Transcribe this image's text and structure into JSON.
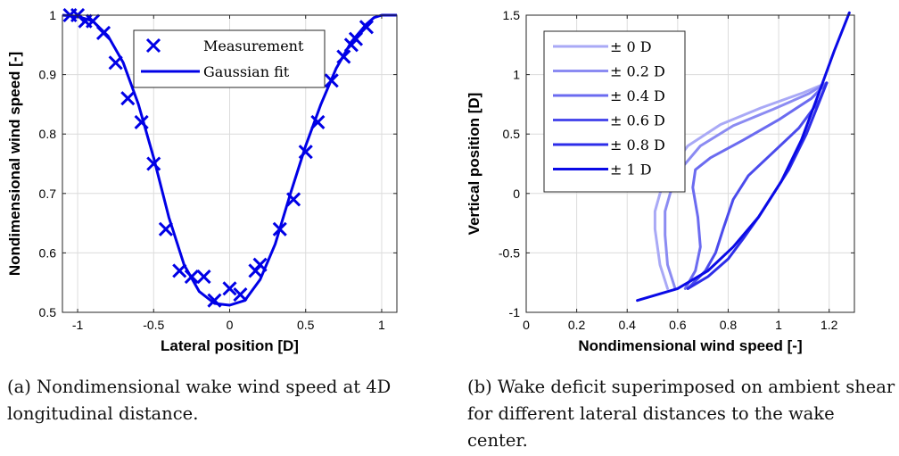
{
  "chart_data": [
    {
      "type": "scatter",
      "xlabel": "Lateral position [D]",
      "ylabel": "Nondimensional wind speed [-]",
      "xlim": [
        -1.1,
        1.1
      ],
      "ylim": [
        0.5,
        1.0
      ],
      "xticks": [
        "-1",
        "-0.5",
        "0",
        "0.5",
        "1"
      ],
      "yticks": [
        "0.5",
        "0.6",
        "0.7",
        "0.8",
        "0.9",
        "1"
      ],
      "grid": true,
      "legend_position": "top-right",
      "color": "#0000e6",
      "series": [
        {
          "name": "Measurement",
          "style": "markers",
          "x": [
            -1.05,
            -1.0,
            -0.95,
            -0.9,
            -0.83,
            -0.75,
            -0.67,
            -0.58,
            -0.5,
            -0.42,
            -0.33,
            -0.25,
            -0.17,
            -0.1,
            0.0,
            0.07,
            0.17,
            0.2,
            0.33,
            0.42,
            0.5,
            0.58,
            0.67,
            0.75,
            0.8,
            0.83,
            0.9
          ],
          "y": [
            1.0,
            1.0,
            0.99,
            0.99,
            0.97,
            0.92,
            0.86,
            0.82,
            0.75,
            0.64,
            0.57,
            0.56,
            0.56,
            0.52,
            0.54,
            0.53,
            0.57,
            0.58,
            0.64,
            0.69,
            0.77,
            0.82,
            0.89,
            0.93,
            0.95,
            0.96,
            0.98
          ]
        },
        {
          "name": "Gaussian fit",
          "style": "line",
          "x": [
            -1.1,
            -1.0,
            -0.9,
            -0.8,
            -0.7,
            -0.6,
            -0.5,
            -0.4,
            -0.3,
            -0.2,
            -0.1,
            0.0,
            0.1,
            0.2,
            0.3,
            0.4,
            0.5,
            0.6,
            0.7,
            0.8,
            0.9,
            0.95,
            1.0,
            1.1
          ],
          "y": [
            1.0,
            0.998,
            0.99,
            0.965,
            0.92,
            0.85,
            0.76,
            0.66,
            0.58,
            0.535,
            0.515,
            0.512,
            0.52,
            0.555,
            0.615,
            0.7,
            0.78,
            0.85,
            0.91,
            0.955,
            0.985,
            0.996,
            1.0,
            1.0
          ]
        }
      ]
    },
    {
      "type": "line",
      "xlabel": "Nondimensional wind speed [-]",
      "ylabel": "Vertical position [D]",
      "xlim": [
        0,
        1.3
      ],
      "ylim": [
        -1,
        1.5
      ],
      "xticks": [
        "0",
        "0.2",
        "0.4",
        "0.6",
        "0.8",
        "1",
        "1.2"
      ],
      "yticks": [
        "-1",
        "-0.5",
        "0",
        "0.5",
        "1",
        "1.5"
      ],
      "grid": true,
      "legend_position": "top-left",
      "series": [
        {
          "name": "± 0 D",
          "color": "#a9a9f6",
          "x": [
            0.56,
            0.53,
            0.51,
            0.51,
            0.53,
            0.57,
            0.64,
            0.77,
            0.93,
            1.1,
            1.19
          ],
          "y": [
            -0.8,
            -0.6,
            -0.3,
            -0.15,
            0.0,
            0.2,
            0.4,
            0.58,
            0.72,
            0.85,
            0.93
          ]
        },
        {
          "name": "± 0.2 D",
          "color": "#8b8bf2",
          "x": [
            0.59,
            0.56,
            0.55,
            0.55,
            0.57,
            0.61,
            0.69,
            0.82,
            0.98,
            1.12,
            1.19
          ],
          "y": [
            -0.8,
            -0.6,
            -0.35,
            -0.15,
            0.0,
            0.2,
            0.4,
            0.57,
            0.71,
            0.84,
            0.93
          ]
        },
        {
          "name": "± 0.4 D",
          "color": "#6b6bf0",
          "x": [
            0.63,
            0.67,
            0.69,
            0.68,
            0.66,
            0.67,
            0.73,
            0.86,
            1.0,
            1.13,
            1.19
          ],
          "y": [
            -0.8,
            -0.65,
            -0.45,
            -0.2,
            0.05,
            0.2,
            0.3,
            0.45,
            0.62,
            0.8,
            0.93
          ]
        },
        {
          "name": "± 0.6 D",
          "color": "#4b4bec",
          "x": [
            0.64,
            0.71,
            0.75,
            0.78,
            0.82,
            0.88,
            0.98,
            1.08,
            1.16,
            1.19
          ],
          "y": [
            -0.8,
            -0.65,
            -0.5,
            -0.3,
            -0.05,
            0.15,
            0.35,
            0.55,
            0.78,
            0.93
          ]
        },
        {
          "name": "± 0.8 D",
          "color": "#2d2de9",
          "x": [
            0.64,
            0.72,
            0.8,
            0.86,
            0.92,
            0.98,
            1.04,
            1.11,
            1.17,
            1.19
          ],
          "y": [
            -0.8,
            -0.7,
            -0.55,
            -0.38,
            -0.2,
            0.0,
            0.2,
            0.5,
            0.82,
            0.93
          ]
        },
        {
          "name": "± 1 D",
          "color": "#0a0ae6",
          "x": [
            0.44,
            0.6,
            0.72,
            0.82,
            0.92,
            1.01,
            1.09,
            1.16,
            1.22,
            1.28
          ],
          "y": [
            -0.9,
            -0.8,
            -0.65,
            -0.45,
            -0.2,
            0.1,
            0.45,
            0.85,
            1.2,
            1.52
          ]
        }
      ]
    }
  ],
  "captions": {
    "a": "(a) Nondimensional wake wind speed at 4D longitudinal distance.",
    "b": "(b) Wake deficit superimposed on ambient shear for different lateral distances to the wake center."
  }
}
